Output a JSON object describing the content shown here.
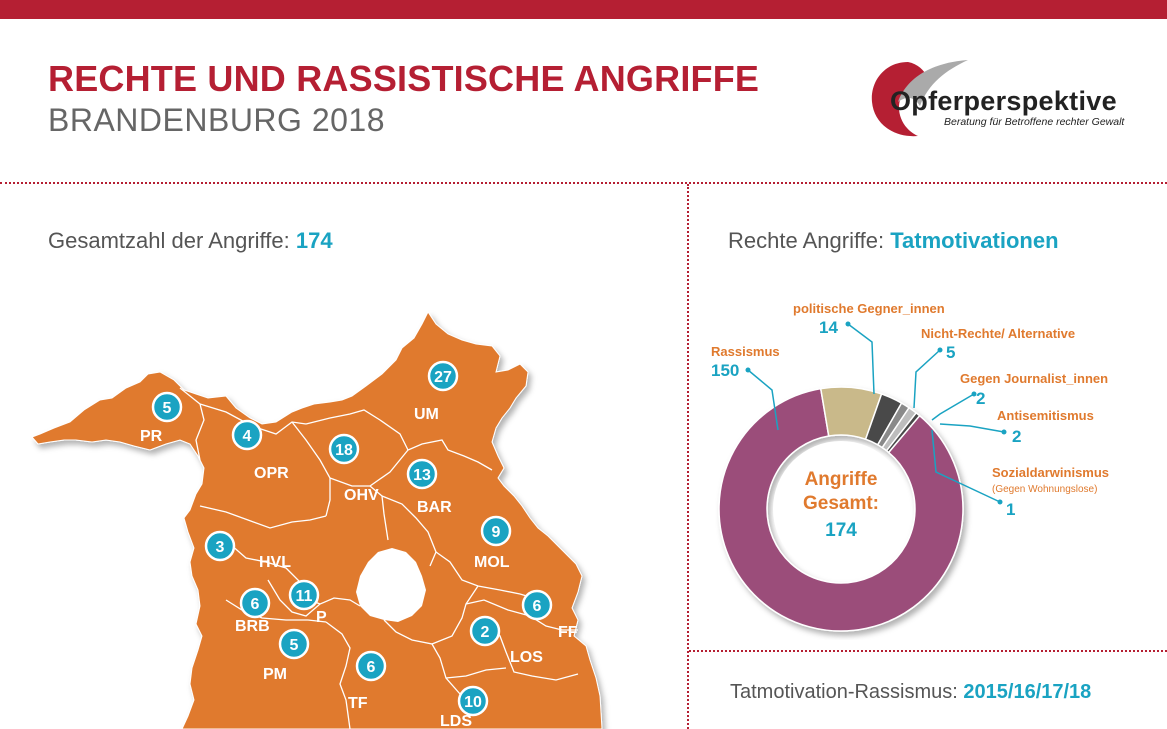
{
  "header": {
    "title": "RECHTE UND RASSISTISCHE ANGRIFFE",
    "subtitle": "BRANDENBURG 2018"
  },
  "logo": {
    "name": "Opferperspektive",
    "tagline": "Beratung für Betroffene rechter Gewalt"
  },
  "colors": {
    "brand_red": "#b51f33",
    "accent_blue": "#1aa3c2",
    "map_orange": "#e07a2e",
    "label_orange": "#e07a2e"
  },
  "left_panel": {
    "heading_text": "Gesamtzahl der Angriffe: ",
    "heading_value": "174"
  },
  "right_panel": {
    "heading_text": "Rechte Angriffe: ",
    "heading_value": "Tatmotivationen"
  },
  "bottom_right": {
    "heading_text": "Tatmotivation-Rassismus: ",
    "heading_value": "2015/16/17/18"
  },
  "map": {
    "districts": [
      {
        "code": "PR",
        "count": "5"
      },
      {
        "code": "OPR",
        "count": "4"
      },
      {
        "code": "OHV",
        "count": "18"
      },
      {
        "code": "UM",
        "count": "27"
      },
      {
        "code": "BAR",
        "count": "13"
      },
      {
        "code": "MOL",
        "count": "9"
      },
      {
        "code": "HVL",
        "count": "3"
      },
      {
        "code": "BRB",
        "count": "6"
      },
      {
        "code": "P",
        "count": "11"
      },
      {
        "code": "PM",
        "count": "5"
      },
      {
        "code": "TF",
        "count": "6"
      },
      {
        "code": "LOS",
        "count": "2"
      },
      {
        "code": "FF",
        "count": "6"
      },
      {
        "code": "LDS",
        "count": "10"
      }
    ]
  },
  "chart_data": {
    "type": "pie",
    "donut": true,
    "title": "Rechte Angriffe: Tatmotivationen",
    "center_label_line1": "Angriffe",
    "center_label_line2": "Gesamt:",
    "center_value": "174",
    "slices": [
      {
        "label": "Rassismus",
        "value": 150,
        "color": "#9b4d7a"
      },
      {
        "label": "politische Gegner_innen",
        "value": 14,
        "color": "#c9b98a"
      },
      {
        "label": "Nicht-Rechte/ Alternative",
        "value": 5,
        "color": "#4a4a4a"
      },
      {
        "label": "Gegen Journalist_innen",
        "value": 2,
        "color": "#8a8a8a"
      },
      {
        "label": "Antisemitismus",
        "value": 2,
        "color": "#bdbdbd"
      },
      {
        "label": "Sozialdarwinismus",
        "value": 1,
        "color": "#4a4a4a",
        "note": "(Gegen Wohnungslose)"
      }
    ]
  }
}
